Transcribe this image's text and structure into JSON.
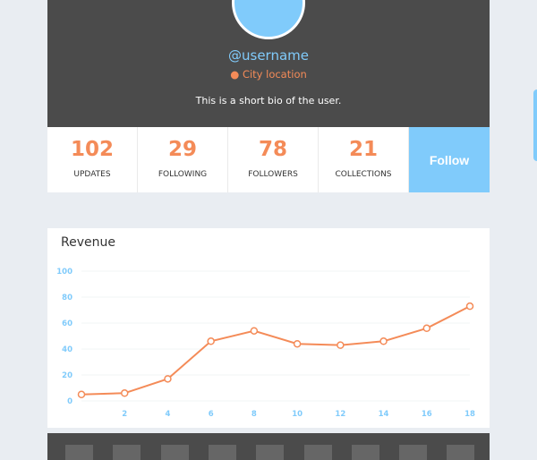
{
  "profile": {
    "username": "@username",
    "location": "City location",
    "bio": "This is a short bio of the user.",
    "location_icon": "map-pin-icon"
  },
  "stats": [
    {
      "value": "102",
      "label": "UPDATES"
    },
    {
      "value": "29",
      "label": "FOLLOWING"
    },
    {
      "value": "78",
      "label": "FOLLOWERS"
    },
    {
      "value": "21",
      "label": "COLLECTIONS"
    }
  ],
  "follow_label": "Follow",
  "colors": {
    "accent": "#80cbfb",
    "orange": "#f48b58",
    "dark": "#4b4b4b"
  },
  "chart_data": {
    "type": "line",
    "title": "Revenue",
    "x": [
      0,
      2,
      4,
      6,
      8,
      10,
      12,
      14,
      16,
      18
    ],
    "values": [
      5,
      6,
      17,
      46,
      54,
      44,
      43,
      46,
      56,
      73
    ],
    "xticks": [
      2,
      4,
      6,
      8,
      10,
      12,
      14,
      16,
      18
    ],
    "yticks": [
      0,
      20,
      40,
      60,
      80,
      100
    ],
    "ylim": [
      0,
      100
    ],
    "grid": true,
    "color": "#f48b58"
  }
}
